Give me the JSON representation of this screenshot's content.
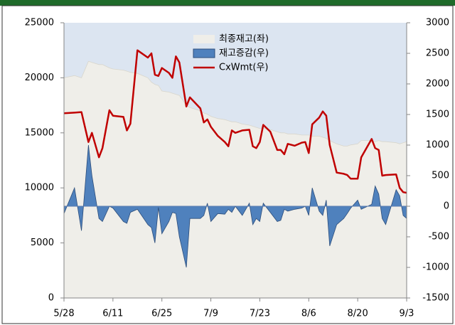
{
  "chart_data": {
    "type": "line",
    "legend": "top",
    "x": [
      0,
      3,
      5,
      7,
      8,
      10,
      11,
      13,
      14,
      17,
      18,
      19,
      21,
      24,
      25,
      26,
      27,
      28,
      30,
      31,
      32,
      33,
      35,
      36,
      39,
      40,
      41,
      42,
      44,
      46,
      47,
      48,
      49,
      51,
      53,
      54,
      55,
      56,
      57,
      59,
      61,
      62,
      63,
      64,
      66,
      68,
      69,
      70,
      71,
      73,
      74,
      75,
      76,
      78,
      80,
      81,
      82,
      84,
      85,
      88,
      89,
      90,
      91,
      92,
      95,
      96,
      97,
      98
    ],
    "xlim": [
      0,
      98
    ],
    "xticks": [
      {
        "value": 0,
        "label": "5/28"
      },
      {
        "value": 14,
        "label": "6/11"
      },
      {
        "value": 28,
        "label": "6/25"
      },
      {
        "value": 42,
        "label": "7/9"
      },
      {
        "value": 56,
        "label": "7/23"
      },
      {
        "value": 70,
        "label": "8/6"
      },
      {
        "value": 84,
        "label": "8/20"
      },
      {
        "value": 98,
        "label": "9/3"
      }
    ],
    "ylim": [
      0,
      25000
    ],
    "yticks": [
      0,
      5000,
      10000,
      15000,
      20000,
      25000
    ],
    "y2lim": [
      -1500,
      3000
    ],
    "y2ticks": [
      -1500,
      -1000,
      -500,
      0,
      500,
      1000,
      1500,
      2000,
      2500,
      3000
    ],
    "series": [
      {
        "name": "최종재고(좌)",
        "type": "area",
        "color": "#efeee9",
        "values": [
          20000,
          20200,
          20000,
          21500,
          21400,
          21200,
          21200,
          20900,
          20800,
          20700,
          20600,
          20500,
          20400,
          20000,
          19600,
          19400,
          19300,
          18800,
          18700,
          18600,
          18500,
          18400,
          17500,
          17300,
          17000,
          16800,
          16700,
          16500,
          16300,
          16200,
          16100,
          16000,
          16000,
          15800,
          15700,
          15600,
          15500,
          15400,
          15400,
          15300,
          15100,
          15000,
          15000,
          14900,
          14900,
          14800,
          14800,
          14800,
          14700,
          14700,
          14600,
          14500,
          14300,
          14000,
          13800,
          13800,
          13900,
          14000,
          14300,
          14300,
          14200,
          14300,
          14200,
          14200,
          14100,
          14000,
          14100,
          14200
        ]
      },
      {
        "name": "재고증감(우)",
        "type": "area",
        "axis": "y2",
        "color": "#4f81bd",
        "values": [
          -120,
          300,
          -400,
          1000,
          500,
          -200,
          -250,
          0,
          -30,
          -250,
          -280,
          -100,
          -50,
          -300,
          -350,
          -600,
          -20,
          -450,
          -250,
          -100,
          -120,
          -500,
          -1000,
          -200,
          -200,
          -150,
          50,
          -250,
          -120,
          -130,
          -50,
          -100,
          0,
          -150,
          50,
          -300,
          -200,
          -250,
          50,
          -100,
          -250,
          -230,
          -50,
          -80,
          -50,
          -30,
          0,
          -150,
          300,
          -80,
          -150,
          100,
          -650,
          -300,
          -200,
          -120,
          -30,
          100,
          -50,
          30,
          330,
          200,
          -200,
          -300,
          270,
          170,
          -150,
          -200
        ]
      },
      {
        "name": "CxWmt(우)",
        "type": "line",
        "axis": "y2",
        "color": "#c00000",
        "values": [
          1520,
          1530,
          1540,
          1050,
          1200,
          800,
          950,
          1570,
          1480,
          1460,
          1240,
          1350,
          2550,
          2430,
          2500,
          2150,
          2130,
          2260,
          2180,
          2100,
          2450,
          2350,
          1630,
          1780,
          1600,
          1370,
          1420,
          1300,
          1150,
          1050,
          980,
          1240,
          1200,
          1240,
          1250,
          980,
          950,
          1050,
          1330,
          1220,
          920,
          920,
          850,
          1020,
          990,
          1040,
          1050,
          870,
          1340,
          1450,
          1550,
          1480,
          1000,
          550,
          530,
          510,
          450,
          450,
          800,
          1100,
          950,
          920,
          500,
          510,
          520,
          300,
          230,
          220
        ]
      }
    ]
  }
}
